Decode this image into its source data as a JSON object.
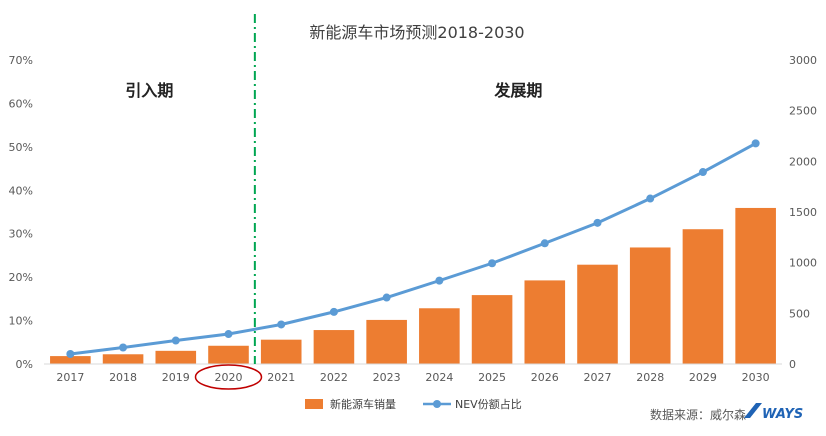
{
  "chart_data": {
    "type": "bar",
    "title": "新能源车市场预测2018-2030",
    "categories": [
      "2017",
      "2018",
      "2019",
      "2020",
      "2021",
      "2022",
      "2023",
      "2024",
      "2025",
      "2026",
      "2027",
      "2028",
      "2029",
      "2030"
    ],
    "series": [
      {
        "name": "新能源车销量",
        "type": "bar",
        "axis": "right",
        "color": "#ED7D31",
        "values": [
          78,
          96,
          130,
          180,
          240,
          335,
          435,
          550,
          680,
          825,
          980,
          1150,
          1330,
          1540
        ]
      },
      {
        "name": "NEV份额占比",
        "type": "line",
        "axis": "left",
        "color": "#5B9BD5",
        "values": [
          2.3,
          3.8,
          5.4,
          6.9,
          9.1,
          12.0,
          15.3,
          19.2,
          23.2,
          27.8,
          32.5,
          38.1,
          44.2,
          50.8
        ]
      }
    ],
    "y_left": {
      "ylim": [
        0,
        70
      ],
      "ticks": [
        0,
        10,
        20,
        30,
        40,
        50,
        60,
        70
      ],
      "tick_labels": [
        "0%",
        "10%",
        "20%",
        "30%",
        "40%",
        "50%",
        "60%",
        "70%"
      ]
    },
    "y_right": {
      "ylim": [
        0,
        3000
      ],
      "ticks": [
        0,
        500,
        1000,
        1500,
        2000,
        2500,
        3000
      ],
      "tick_labels": [
        "0",
        "500",
        "1000",
        "1500",
        "2000",
        "2500",
        "3000"
      ]
    },
    "phases": [
      {
        "label": "引入期",
        "from": "2017",
        "to": "2020"
      },
      {
        "label": "发展期",
        "from": "2021",
        "to": "2030"
      }
    ],
    "divider_after": "2020",
    "highlighted_category": "2020",
    "legend_position": "bottom-center"
  },
  "source_text": "数据来源：威尔森",
  "brand_text": "WAYS",
  "colors": {
    "bar": "#ED7D31",
    "line": "#5B9BD5",
    "divider": "#00A651",
    "highlight_circle": "#C00000",
    "brand": "#1F63B5"
  }
}
